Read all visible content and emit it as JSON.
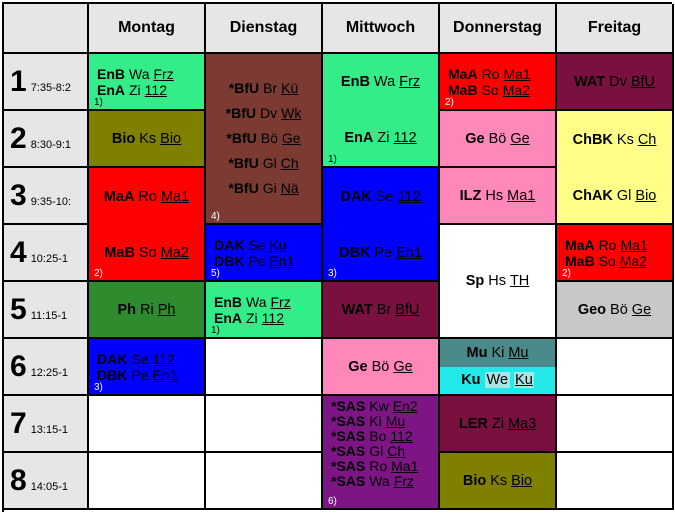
{
  "days": [
    "Montag",
    "Dienstag",
    "Mittwoch",
    "Donnerstag",
    "Freitag"
  ],
  "periods": [
    {
      "num": "1",
      "time": "7:35-8:2"
    },
    {
      "num": "2",
      "time": "8:30-9:1"
    },
    {
      "num": "3",
      "time": "9:35-10:"
    },
    {
      "num": "4",
      "time": "10:25-1"
    },
    {
      "num": "5",
      "time": "11:15-1"
    },
    {
      "num": "6",
      "time": "12:25-1"
    },
    {
      "num": "7",
      "time": "13:15-1"
    },
    {
      "num": "8",
      "time": "14:05-1"
    }
  ],
  "colors": {
    "green": "#33ee88",
    "red": "#ff0000",
    "olive": "#808000",
    "darkgreen": "#2e8b2e",
    "blue": "#0000ff",
    "brown": "#7b3b32",
    "wine": "#7a1040",
    "pink": "#ff88bb",
    "purple": "#7d1585",
    "teal": "#4a8a8a",
    "cyan": "#22e8e8",
    "yellow": "#ffff88",
    "grey": "#c8c8c8"
  },
  "lessons": {
    "mo1": {
      "lines": [
        {
          "s": "EnB",
          "t": "Wa",
          "r": "Frz"
        },
        {
          "s": "EnA",
          "t": "Zi",
          "r": "112"
        }
      ],
      "footnote": "1)"
    },
    "mo2": {
      "lines": [
        {
          "s": "Bio",
          "t": "Ks",
          "r": "Bio"
        }
      ]
    },
    "mo3": {
      "lines": [
        {
          "s": "MaA",
          "t": "Ro",
          "r": "Ma1"
        }
      ]
    },
    "mo4": {
      "lines": [
        {
          "s": "MaB",
          "t": "So",
          "r": "Ma2"
        }
      ],
      "footnote": "2)"
    },
    "mo5": {
      "lines": [
        {
          "s": "Ph",
          "t": "Ri",
          "r": "Ph"
        }
      ]
    },
    "mo6": {
      "lines": [
        {
          "s": "DAK",
          "t": "Se",
          "r": "112"
        },
        {
          "s": "DBK",
          "t": "Pe",
          "r": "En1"
        }
      ],
      "footnote": "3)"
    },
    "di14": {
      "lines": [
        {
          "s": "*BfU",
          "t": "Br",
          "r": "Kü"
        },
        {
          "s": "*BfU",
          "t": "Dv",
          "r": "Wk"
        },
        {
          "s": "*BfU",
          "t": "Bö",
          "r": "Ge"
        },
        {
          "s": "*BfU",
          "t": "Gl",
          "r": "Ch"
        },
        {
          "s": "*BfU",
          "t": "Gi",
          "r": "Nä"
        }
      ],
      "footnote": "4)"
    },
    "di4": {
      "lines": [
        {
          "s": "DAK",
          "t": "Se",
          "r": "Ku"
        },
        {
          "s": "DBK",
          "t": "Pe",
          "r": "En1"
        }
      ],
      "footnote": "5)"
    },
    "di5": {
      "lines": [
        {
          "s": "EnB",
          "t": "Wa",
          "r": "Frz"
        },
        {
          "s": "EnA",
          "t": "Zi",
          "r": "112"
        }
      ],
      "footnote": "1)"
    },
    "mi12a": {
      "lines": [
        {
          "s": "EnB",
          "t": "Wa",
          "r": "Frz"
        }
      ]
    },
    "mi12b": {
      "lines": [
        {
          "s": "EnA",
          "t": "Zi",
          "r": "112"
        }
      ],
      "footnote": "1)"
    },
    "mi3": {
      "lines": [
        {
          "s": "DAK",
          "t": "Se",
          "r": "112"
        }
      ]
    },
    "mi4": {
      "lines": [
        {
          "s": "DBK",
          "t": "Pe",
          "r": "En1"
        }
      ],
      "footnote": "3)"
    },
    "mi5": {
      "lines": [
        {
          "s": "WAT",
          "t": "Br",
          "r": "BfU"
        }
      ]
    },
    "mi6": {
      "lines": [
        {
          "s": "Ge",
          "t": "Bö",
          "r": "Ge"
        }
      ]
    },
    "mi78": {
      "lines": [
        {
          "s": "*SAS",
          "t": "Kw",
          "r": "En2"
        },
        {
          "s": "*SAS",
          "t": "Ki",
          "r": "Mu"
        },
        {
          "s": "*SAS",
          "t": "Bo",
          "r": "112"
        },
        {
          "s": "*SAS",
          "t": "Gl",
          "r": "Ch"
        },
        {
          "s": "*SAS",
          "t": "Ro",
          "r": "Ma1"
        },
        {
          "s": "*SAS",
          "t": "Wa",
          "r": "Frz"
        }
      ],
      "footnote": "6)"
    },
    "do1": {
      "lines": [
        {
          "s": "MaA",
          "t": "Ro",
          "r": "Ma1"
        },
        {
          "s": "MaB",
          "t": "So",
          "r": "Ma2"
        }
      ],
      "footnote": "2)"
    },
    "do2": {
      "lines": [
        {
          "s": "Ge",
          "t": "Bö",
          "r": "Ge"
        }
      ]
    },
    "do3": {
      "lines": [
        {
          "s": "ILZ",
          "t": "Hs",
          "r": "Ma1"
        }
      ]
    },
    "do45": {
      "lines": [
        {
          "s": "Sp",
          "t": "Hs",
          "r": "TH"
        }
      ]
    },
    "do6a": {
      "lines": [
        {
          "s": "Mu",
          "t": "Ki",
          "r": "Mu"
        }
      ]
    },
    "do6b": {
      "lines": [
        {
          "s": "Ku",
          "t": "We",
          "r": "Ku"
        }
      ]
    },
    "do7": {
      "lines": [
        {
          "s": "LER",
          "t": "Zi",
          "r": "Ma3"
        }
      ]
    },
    "do8": {
      "lines": [
        {
          "s": "Bio",
          "t": "Ks",
          "r": "Bio"
        }
      ]
    },
    "fr1": {
      "lines": [
        {
          "s": "WAT",
          "t": "Dv",
          "r": "BfU"
        }
      ]
    },
    "fr2": {
      "lines": [
        {
          "s": "ChBK",
          "t": "Ks",
          "r": "Ch"
        }
      ]
    },
    "fr3": {
      "lines": [
        {
          "s": "ChAK",
          "t": "Gl",
          "r": "Bio"
        }
      ]
    },
    "fr4": {
      "lines": [
        {
          "s": "MaA",
          "t": "Ro",
          "r": "Ma1"
        },
        {
          "s": "MaB",
          "t": "So",
          "r": "Ma2"
        }
      ],
      "footnote": "2)"
    },
    "fr5": {
      "lines": [
        {
          "s": "Geo",
          "t": "Bö",
          "r": "Ge"
        }
      ]
    }
  }
}
